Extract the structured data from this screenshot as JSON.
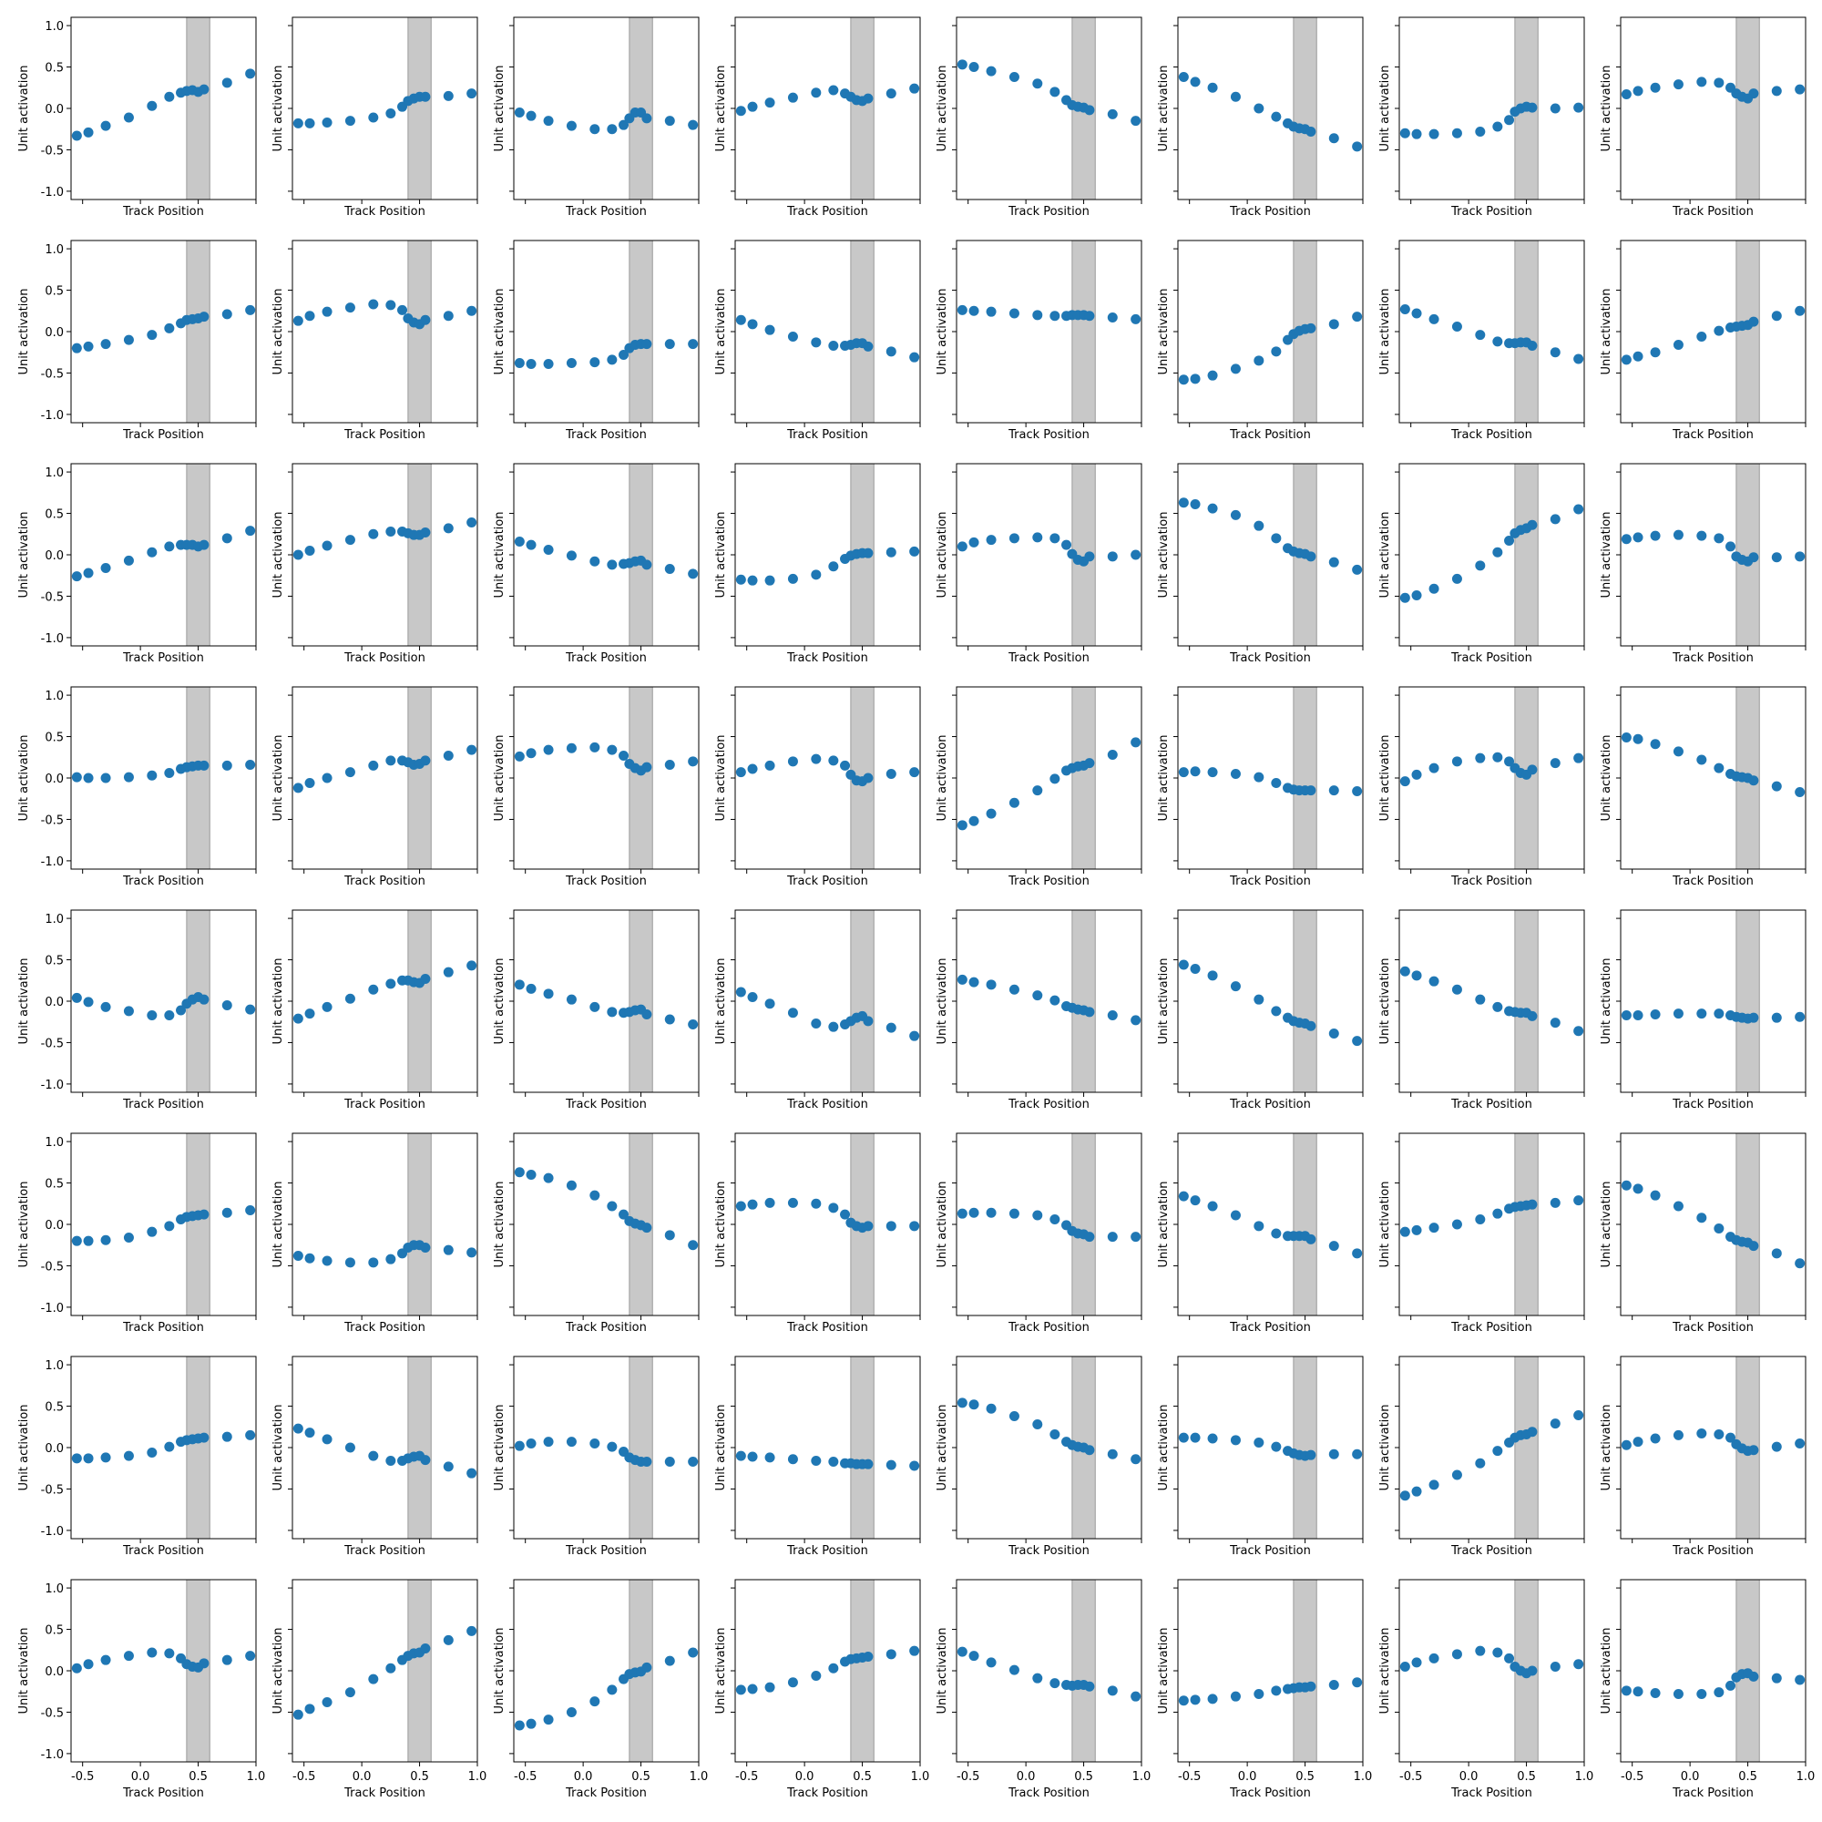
{
  "chart_data": {
    "type": "scatter",
    "rows": 8,
    "cols": 8,
    "xlabel": "Track Position",
    "ylabel": "Unit activation",
    "xlim": [
      -0.6,
      1.0
    ],
    "ylim": [
      -1.1,
      1.1
    ],
    "xticks": [
      -0.5,
      0.0,
      0.5,
      1.0
    ],
    "xtick_labels": [
      "-0.5",
      "0.0",
      "0.5",
      "1.0"
    ],
    "yticks": [
      -1.0,
      -0.5,
      0.0,
      0.5,
      1.0
    ],
    "ytick_labels": [
      "-1.0",
      "-0.5",
      "0.0",
      "0.5",
      "1.0"
    ],
    "shaded_region": [
      0.4,
      0.6
    ],
    "shade_color": "#c8c8c8",
    "marker_color": "#1f77b4",
    "x": [
      -0.55,
      -0.45,
      -0.3,
      -0.1,
      0.1,
      0.25,
      0.35,
      0.4,
      0.45,
      0.5,
      0.55,
      0.75,
      0.95
    ],
    "panels": [
      [
        -0.33,
        -0.29,
        -0.21,
        -0.11,
        0.03,
        0.14,
        0.19,
        0.21,
        0.22,
        0.2,
        0.23,
        0.31,
        0.42
      ],
      [
        -0.18,
        -0.18,
        -0.17,
        -0.15,
        -0.11,
        -0.06,
        0.02,
        0.09,
        0.12,
        0.14,
        0.14,
        0.15,
        0.18
      ],
      [
        -0.05,
        -0.09,
        -0.15,
        -0.21,
        -0.25,
        -0.25,
        -0.2,
        -0.12,
        -0.05,
        -0.05,
        -0.12,
        -0.15,
        -0.2
      ],
      [
        -0.03,
        0.02,
        0.07,
        0.13,
        0.19,
        0.22,
        0.18,
        0.14,
        0.1,
        0.09,
        0.12,
        0.18,
        0.24
      ],
      [
        0.53,
        0.5,
        0.45,
        0.38,
        0.3,
        0.2,
        0.1,
        0.04,
        0.02,
        0.01,
        -0.02,
        -0.07,
        -0.15
      ],
      [
        0.38,
        0.32,
        0.25,
        0.14,
        0.0,
        -0.1,
        -0.18,
        -0.22,
        -0.24,
        -0.25,
        -0.28,
        -0.36,
        -0.46
      ],
      [
        -0.3,
        -0.31,
        -0.31,
        -0.3,
        -0.28,
        -0.22,
        -0.14,
        -0.04,
        0.0,
        0.02,
        0.01,
        0.0,
        0.01
      ],
      [
        0.17,
        0.21,
        0.25,
        0.29,
        0.32,
        0.31,
        0.25,
        0.18,
        0.14,
        0.12,
        0.18,
        0.21,
        0.23
      ],
      [
        -0.2,
        -0.18,
        -0.15,
        -0.1,
        -0.04,
        0.04,
        0.1,
        0.14,
        0.15,
        0.16,
        0.18,
        0.21,
        0.26
      ],
      [
        0.13,
        0.19,
        0.24,
        0.29,
        0.33,
        0.32,
        0.26,
        0.16,
        0.11,
        0.09,
        0.14,
        0.19,
        0.25
      ],
      [
        -0.38,
        -0.39,
        -0.39,
        -0.38,
        -0.37,
        -0.34,
        -0.28,
        -0.2,
        -0.16,
        -0.15,
        -0.15,
        -0.15,
        -0.15
      ],
      [
        0.14,
        0.09,
        0.02,
        -0.06,
        -0.13,
        -0.17,
        -0.17,
        -0.16,
        -0.14,
        -0.14,
        -0.18,
        -0.24,
        -0.31
      ],
      [
        0.26,
        0.25,
        0.24,
        0.22,
        0.2,
        0.19,
        0.19,
        0.2,
        0.2,
        0.2,
        0.19,
        0.17,
        0.15
      ],
      [
        -0.58,
        -0.57,
        -0.53,
        -0.45,
        -0.35,
        -0.24,
        -0.1,
        -0.03,
        0.01,
        0.03,
        0.04,
        0.09,
        0.18
      ],
      [
        0.27,
        0.22,
        0.15,
        0.06,
        -0.04,
        -0.12,
        -0.14,
        -0.14,
        -0.13,
        -0.13,
        -0.17,
        -0.25,
        -0.33
      ],
      [
        -0.34,
        -0.3,
        -0.25,
        -0.16,
        -0.06,
        0.01,
        0.05,
        0.06,
        0.07,
        0.08,
        0.12,
        0.19,
        0.25
      ],
      [
        -0.26,
        -0.22,
        -0.16,
        -0.07,
        0.03,
        0.1,
        0.12,
        0.12,
        0.12,
        0.1,
        0.12,
        0.2,
        0.29
      ],
      [
        0.0,
        0.05,
        0.11,
        0.18,
        0.25,
        0.28,
        0.28,
        0.26,
        0.24,
        0.24,
        0.27,
        0.32,
        0.39
      ],
      [
        0.16,
        0.12,
        0.06,
        -0.01,
        -0.08,
        -0.12,
        -0.11,
        -0.1,
        -0.08,
        -0.07,
        -0.12,
        -0.17,
        -0.23
      ],
      [
        -0.3,
        -0.31,
        -0.31,
        -0.29,
        -0.24,
        -0.14,
        -0.05,
        -0.01,
        0.01,
        0.02,
        0.02,
        0.03,
        0.04
      ],
      [
        0.1,
        0.15,
        0.18,
        0.2,
        0.21,
        0.2,
        0.12,
        0.01,
        -0.06,
        -0.08,
        -0.02,
        -0.02,
        0.0
      ],
      [
        0.63,
        0.61,
        0.56,
        0.48,
        0.35,
        0.2,
        0.08,
        0.04,
        0.02,
        0.01,
        -0.02,
        -0.09,
        -0.18
      ],
      [
        -0.52,
        -0.49,
        -0.41,
        -0.29,
        -0.13,
        0.03,
        0.17,
        0.26,
        0.3,
        0.32,
        0.36,
        0.43,
        0.55
      ],
      [
        0.19,
        0.21,
        0.23,
        0.24,
        0.23,
        0.2,
        0.1,
        -0.02,
        -0.06,
        -0.08,
        -0.03,
        -0.03,
        -0.02
      ],
      [
        0.01,
        0.0,
        0.0,
        0.01,
        0.03,
        0.06,
        0.11,
        0.13,
        0.14,
        0.15,
        0.15,
        0.15,
        0.16
      ],
      [
        -0.12,
        -0.06,
        0.0,
        0.07,
        0.15,
        0.21,
        0.21,
        0.19,
        0.16,
        0.17,
        0.21,
        0.27,
        0.34
      ],
      [
        0.26,
        0.3,
        0.34,
        0.36,
        0.37,
        0.34,
        0.27,
        0.17,
        0.12,
        0.09,
        0.13,
        0.16,
        0.2
      ],
      [
        0.07,
        0.11,
        0.15,
        0.2,
        0.23,
        0.21,
        0.15,
        0.04,
        -0.03,
        -0.04,
        0.0,
        0.05,
        0.07
      ],
      [
        -0.57,
        -0.52,
        -0.43,
        -0.3,
        -0.15,
        -0.01,
        0.09,
        0.12,
        0.14,
        0.15,
        0.18,
        0.28,
        0.43
      ],
      [
        0.07,
        0.08,
        0.07,
        0.05,
        0.01,
        -0.06,
        -0.12,
        -0.14,
        -0.15,
        -0.15,
        -0.15,
        -0.15,
        -0.16
      ],
      [
        -0.04,
        0.04,
        0.12,
        0.2,
        0.24,
        0.25,
        0.2,
        0.12,
        0.06,
        0.04,
        0.1,
        0.18,
        0.24
      ],
      [
        0.49,
        0.47,
        0.41,
        0.32,
        0.22,
        0.12,
        0.05,
        0.02,
        0.01,
        0.0,
        -0.03,
        -0.1,
        -0.17
      ],
      [
        0.04,
        -0.01,
        -0.07,
        -0.12,
        -0.17,
        -0.17,
        -0.11,
        -0.03,
        0.02,
        0.05,
        0.02,
        -0.05,
        -0.1
      ],
      [
        -0.21,
        -0.15,
        -0.07,
        0.03,
        0.14,
        0.21,
        0.25,
        0.25,
        0.23,
        0.22,
        0.27,
        0.35,
        0.43
      ],
      [
        0.2,
        0.15,
        0.09,
        0.02,
        -0.07,
        -0.13,
        -0.14,
        -0.13,
        -0.11,
        -0.1,
        -0.16,
        -0.22,
        -0.28
      ],
      [
        0.11,
        0.05,
        -0.03,
        -0.14,
        -0.27,
        -0.31,
        -0.28,
        -0.24,
        -0.2,
        -0.18,
        -0.24,
        -0.32,
        -0.42
      ],
      [
        0.26,
        0.23,
        0.2,
        0.14,
        0.07,
        0.01,
        -0.06,
        -0.08,
        -0.1,
        -0.11,
        -0.13,
        -0.17,
        -0.23
      ],
      [
        0.44,
        0.39,
        0.31,
        0.18,
        0.02,
        -0.12,
        -0.2,
        -0.24,
        -0.26,
        -0.27,
        -0.3,
        -0.39,
        -0.48
      ],
      [
        0.36,
        0.31,
        0.24,
        0.14,
        0.02,
        -0.07,
        -0.12,
        -0.13,
        -0.14,
        -0.14,
        -0.18,
        -0.26,
        -0.36
      ],
      [
        -0.17,
        -0.17,
        -0.16,
        -0.15,
        -0.15,
        -0.15,
        -0.17,
        -0.19,
        -0.2,
        -0.21,
        -0.2,
        -0.2,
        -0.19
      ],
      [
        -0.2,
        -0.2,
        -0.19,
        -0.16,
        -0.09,
        -0.02,
        0.06,
        0.09,
        0.1,
        0.11,
        0.12,
        0.14,
        0.17
      ],
      [
        -0.38,
        -0.41,
        -0.44,
        -0.46,
        -0.46,
        -0.42,
        -0.35,
        -0.28,
        -0.25,
        -0.25,
        -0.28,
        -0.31,
        -0.34
      ],
      [
        0.63,
        0.6,
        0.56,
        0.47,
        0.35,
        0.22,
        0.12,
        0.04,
        0.01,
        -0.01,
        -0.04,
        -0.13,
        -0.25
      ],
      [
        0.22,
        0.24,
        0.26,
        0.26,
        0.25,
        0.2,
        0.12,
        0.02,
        -0.02,
        -0.04,
        -0.02,
        -0.02,
        -0.02
      ],
      [
        0.13,
        0.14,
        0.14,
        0.13,
        0.11,
        0.06,
        -0.01,
        -0.08,
        -0.11,
        -0.12,
        -0.15,
        -0.15,
        -0.15
      ],
      [
        0.34,
        0.29,
        0.22,
        0.11,
        -0.02,
        -0.11,
        -0.14,
        -0.14,
        -0.14,
        -0.14,
        -0.18,
        -0.26,
        -0.35
      ],
      [
        -0.09,
        -0.07,
        -0.04,
        0.0,
        0.06,
        0.13,
        0.19,
        0.21,
        0.22,
        0.23,
        0.24,
        0.26,
        0.29
      ],
      [
        0.47,
        0.43,
        0.35,
        0.22,
        0.08,
        -0.05,
        -0.15,
        -0.19,
        -0.21,
        -0.22,
        -0.26,
        -0.35,
        -0.47
      ],
      [
        -0.13,
        -0.13,
        -0.12,
        -0.1,
        -0.06,
        0.01,
        0.07,
        0.09,
        0.1,
        0.11,
        0.12,
        0.13,
        0.15
      ],
      [
        0.23,
        0.18,
        0.1,
        0.0,
        -0.1,
        -0.16,
        -0.16,
        -0.13,
        -0.11,
        -0.1,
        -0.15,
        -0.23,
        -0.31
      ],
      [
        0.02,
        0.05,
        0.07,
        0.07,
        0.05,
        0.01,
        -0.05,
        -0.12,
        -0.15,
        -0.17,
        -0.17,
        -0.17,
        -0.17
      ],
      [
        -0.1,
        -0.11,
        -0.12,
        -0.14,
        -0.16,
        -0.17,
        -0.19,
        -0.19,
        -0.2,
        -0.2,
        -0.2,
        -0.21,
        -0.22
      ],
      [
        0.54,
        0.52,
        0.47,
        0.38,
        0.28,
        0.16,
        0.07,
        0.03,
        0.01,
        0.0,
        -0.03,
        -0.08,
        -0.14
      ],
      [
        0.12,
        0.12,
        0.11,
        0.09,
        0.06,
        0.01,
        -0.04,
        -0.07,
        -0.09,
        -0.1,
        -0.09,
        -0.08,
        -0.08
      ],
      [
        -0.58,
        -0.53,
        -0.45,
        -0.33,
        -0.19,
        -0.04,
        0.06,
        0.12,
        0.15,
        0.16,
        0.19,
        0.29,
        0.39
      ],
      [
        0.03,
        0.07,
        0.11,
        0.15,
        0.17,
        0.16,
        0.12,
        0.04,
        -0.01,
        -0.04,
        -0.03,
        0.01,
        0.05
      ],
      [
        0.03,
        0.08,
        0.13,
        0.18,
        0.22,
        0.21,
        0.15,
        0.08,
        0.05,
        0.04,
        0.09,
        0.13,
        0.18
      ],
      [
        -0.53,
        -0.46,
        -0.38,
        -0.26,
        -0.1,
        0.03,
        0.13,
        0.18,
        0.21,
        0.22,
        0.27,
        0.37,
        0.48
      ],
      [
        -0.66,
        -0.64,
        -0.59,
        -0.5,
        -0.37,
        -0.23,
        -0.1,
        -0.04,
        -0.02,
        -0.01,
        0.04,
        0.12,
        0.22
      ],
      [
        -0.23,
        -0.22,
        -0.2,
        -0.14,
        -0.06,
        0.03,
        0.11,
        0.14,
        0.15,
        0.16,
        0.17,
        0.2,
        0.24
      ],
      [
        0.23,
        0.18,
        0.1,
        0.01,
        -0.09,
        -0.15,
        -0.17,
        -0.18,
        -0.17,
        -0.17,
        -0.19,
        -0.24,
        -0.31
      ],
      [
        -0.36,
        -0.35,
        -0.34,
        -0.31,
        -0.28,
        -0.24,
        -0.22,
        -0.21,
        -0.2,
        -0.2,
        -0.19,
        -0.17,
        -0.14
      ],
      [
        0.05,
        0.1,
        0.15,
        0.2,
        0.24,
        0.22,
        0.15,
        0.05,
        0.0,
        -0.03,
        0.0,
        0.05,
        0.08
      ],
      [
        -0.24,
        -0.25,
        -0.27,
        -0.28,
        -0.28,
        -0.26,
        -0.18,
        -0.08,
        -0.04,
        -0.03,
        -0.07,
        -0.09,
        -0.11
      ]
    ]
  }
}
